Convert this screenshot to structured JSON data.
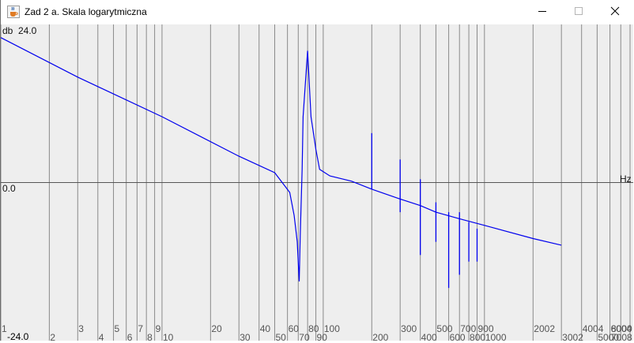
{
  "window": {
    "title": "Zad 2 a. Skala logarytmiczna",
    "icon": "java-cup-icon",
    "controls": [
      "minimize-icon",
      "maximize-icon",
      "close-icon"
    ]
  },
  "colors": {
    "plot_bg": "#eeeeee",
    "grid": "#8a8a8a",
    "axis": "#555555",
    "curve": "#0000ee",
    "tick_text": "#555555"
  },
  "labels": {
    "y_unit": "db",
    "y_max": "24.0",
    "y_zero": "0.0",
    "y_min": "-24.0",
    "x_unit": "Hz"
  },
  "chart_data": {
    "type": "line",
    "x_scale": "log",
    "xlim": [
      1,
      8000
    ],
    "ylim": [
      -24,
      24
    ],
    "grid": true,
    "x_tick_labels": [
      "1",
      "2",
      "3",
      "4",
      "5",
      "6",
      "7",
      "8",
      "9",
      "10",
      "20",
      "30",
      "40",
      "50",
      "60",
      "70",
      "80",
      "90",
      "100",
      "200",
      "300",
      "400",
      "500",
      "600",
      "700",
      "800",
      "900",
      "1000",
      "2002",
      "3002",
      "4004",
      "5000",
      "6004",
      "7008",
      "8000"
    ],
    "series": [
      {
        "x": [
          1,
          3,
          10,
          30,
          50,
          62,
          66,
          69,
          71,
          72,
          74,
          75,
          80,
          84,
          90,
          95,
          110,
          150,
          200,
          300,
          400,
          500,
          700,
          1000,
          2000,
          3000
        ],
        "y": [
          22,
          16,
          10,
          4,
          1.5,
          -1.5,
          -5,
          -9,
          -15,
          -8,
          2,
          10,
          20,
          10,
          5,
          2,
          1,
          0.2,
          -1,
          -2.5,
          -3.5,
          -4.5,
          -5.5,
          -6.5,
          -8.5,
          -9.5
        ]
      }
    ],
    "spikes": [
      {
        "x": 200,
        "high": 7.5,
        "low": -1
      },
      {
        "x": 300,
        "high": 3.5,
        "low": -4.5
      },
      {
        "x": 400,
        "high": 0.5,
        "low": -11
      },
      {
        "x": 500,
        "high": -3,
        "low": -9
      },
      {
        "x": 600,
        "high": -4.5,
        "low": -16
      },
      {
        "x": 700,
        "high": -4.5,
        "low": -14
      },
      {
        "x": 800,
        "high": -6,
        "low": -12
      },
      {
        "x": 900,
        "high": -7,
        "low": -12
      }
    ]
  }
}
